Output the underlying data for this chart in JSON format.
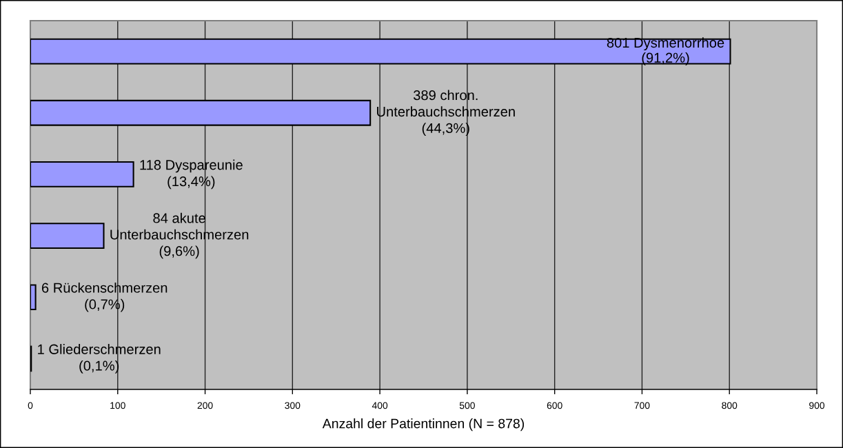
{
  "chart_data": {
    "type": "bar",
    "orientation": "horizontal",
    "categories": [
      null,
      null,
      null,
      null,
      null,
      null
    ],
    "values": [
      801,
      389,
      118,
      84,
      6,
      1
    ],
    "color": "#9999ff",
    "value_labels": [
      "801 Dysmenorrhoe\n(91,2%)",
      "389 chron.\nUnterbauchschmerzen\n(44,3%)",
      "118 Dyspareunie\n(13,4%)",
      "84 akute\nUnterbauchschmerzen\n(9,6%)",
      "6 Rückenschmerzen\n(0,7%)",
      "1 Gliederschmerzen\n(0,1%)"
    ],
    "xlabel": "Anzahl der Patientinnen (N = 878)",
    "xlim": [
      0,
      900
    ],
    "xticks": [
      0,
      100,
      200,
      300,
      400,
      500,
      600,
      700,
      800,
      900
    ],
    "grid": "x",
    "tick_labels": "x"
  }
}
